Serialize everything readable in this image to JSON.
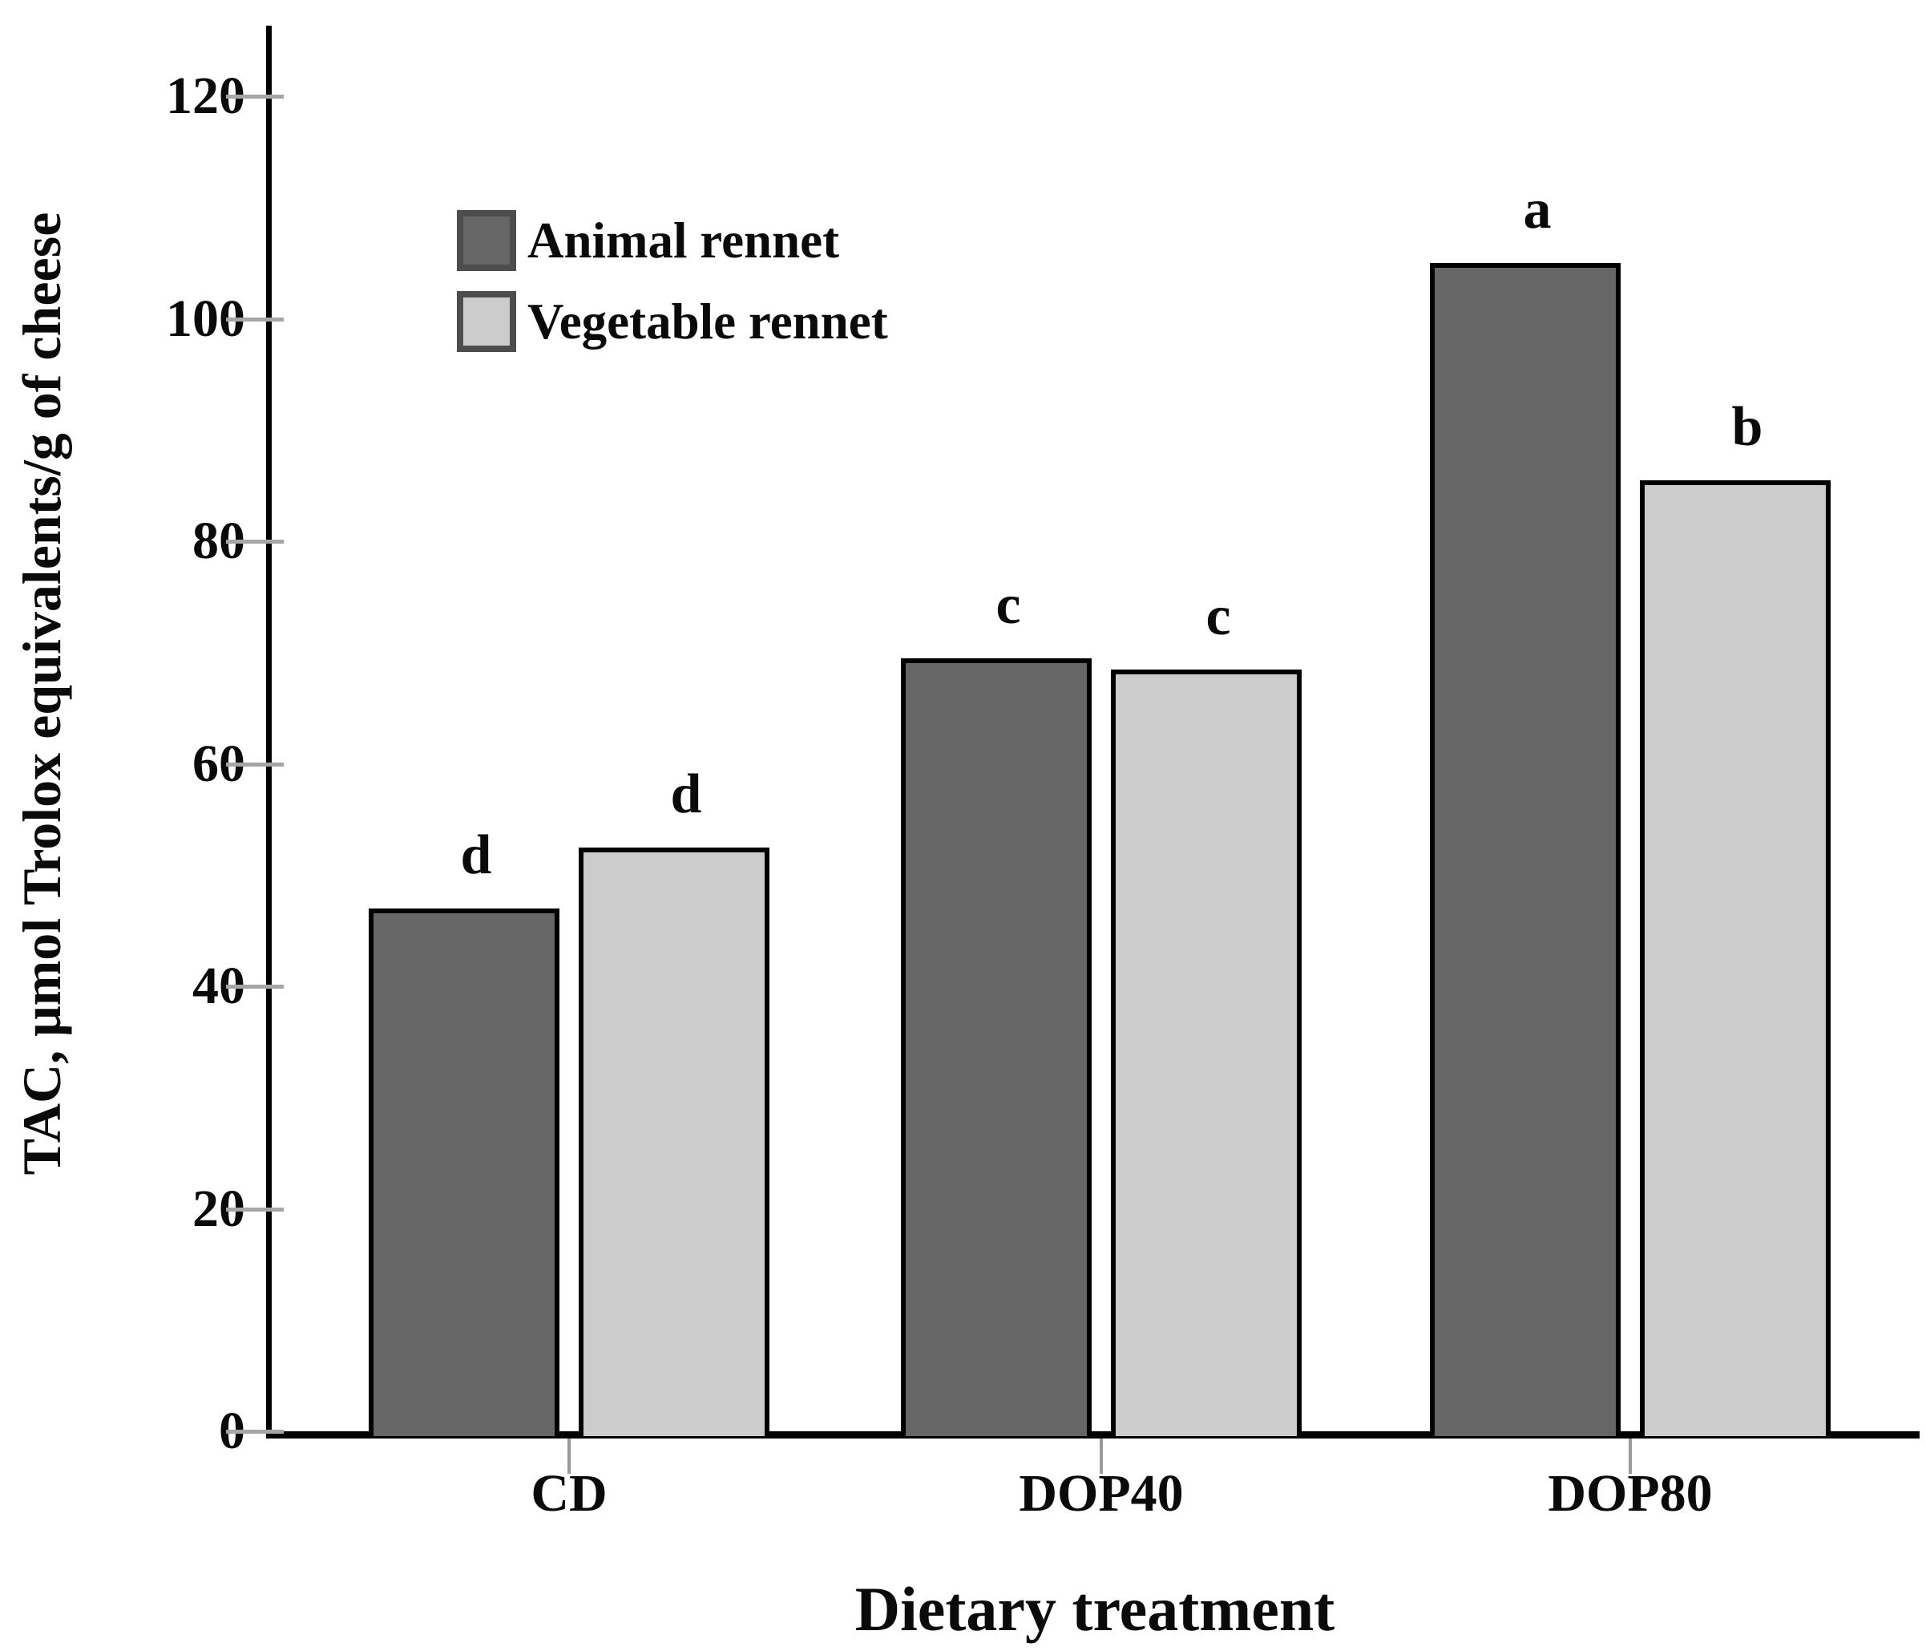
{
  "chart_data": {
    "type": "bar",
    "categories": [
      "CD",
      "DOP40",
      "DOP80"
    ],
    "series": [
      {
        "name": "Animal rennet",
        "color": "#666666",
        "border_color": "#000000",
        "values": [
          47,
          69.5,
          105
        ],
        "sig_labels": [
          "d",
          "c",
          "a"
        ]
      },
      {
        "name": "Vegetable rennet",
        "color": "#cccccc",
        "border_color": "#000000",
        "values": [
          52.5,
          68.5,
          85.5
        ],
        "sig_labels": [
          "d",
          "c",
          "b"
        ]
      }
    ],
    "xlabel": "Dietary treatment",
    "ylabel": "TAC, μmol Trolox equivalents/g of cheese",
    "ylim": [
      0,
      130
    ],
    "yticks": [
      0,
      20,
      40,
      60,
      80,
      100,
      120
    ],
    "grid": false,
    "legend_position": "upper-left-inside",
    "axis_color": "#000000",
    "tick_color": "#a6a6a6",
    "background": "#ffffff"
  }
}
